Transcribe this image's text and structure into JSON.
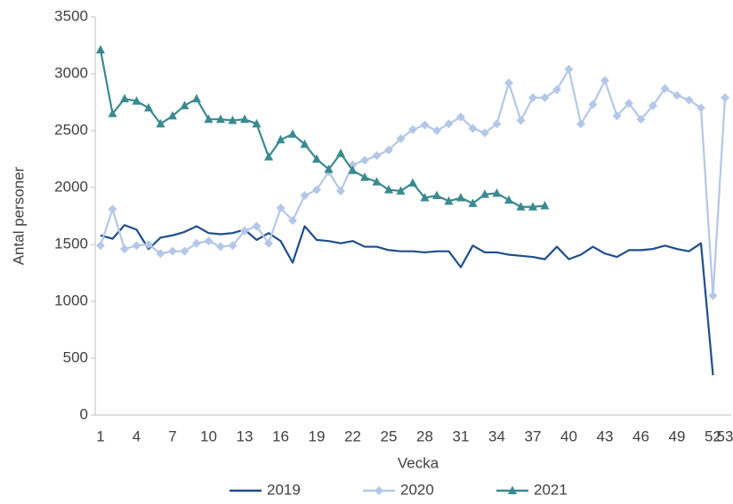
{
  "chart_data": {
    "type": "line",
    "x_label": "Vecka",
    "y_label": "Antal personer",
    "categories": [
      "1",
      null,
      null,
      "4",
      null,
      null,
      "7",
      null,
      null,
      "10",
      null,
      null,
      "13",
      null,
      null,
      "16",
      null,
      null,
      "19",
      null,
      null,
      "22",
      null,
      null,
      "25",
      null,
      null,
      "28",
      null,
      null,
      "31",
      null,
      null,
      "34",
      null,
      null,
      "37",
      null,
      null,
      "40",
      null,
      null,
      "43",
      null,
      null,
      "46",
      null,
      null,
      "49",
      null,
      null,
      "52",
      "53"
    ],
    "ylim": [
      0,
      3500
    ],
    "yticks": [
      0,
      500,
      1000,
      1500,
      2000,
      2500,
      3000,
      3500
    ],
    "grid": false,
    "legend": "bottom",
    "series": [
      {
        "name": "2019",
        "color": "#1f4e8c",
        "marker": "none",
        "values": [
          1580,
          1550,
          1670,
          1630,
          1460,
          1560,
          1580,
          1610,
          1660,
          1600,
          1590,
          1600,
          1630,
          1540,
          1600,
          1530,
          1340,
          1660,
          1540,
          1530,
          1510,
          1530,
          1480,
          1480,
          1450,
          1440,
          1440,
          1430,
          1440,
          1440,
          1300,
          1490,
          1430,
          1430,
          1410,
          1400,
          1390,
          1370,
          1480,
          1370,
          1410,
          1480,
          1420,
          1390,
          1450,
          1450,
          1460,
          1490,
          1460,
          1440,
          1510,
          350,
          null
        ]
      },
      {
        "name": "2020",
        "color": "#b4c7e7",
        "marker": "diamond",
        "values": [
          1490,
          1810,
          1460,
          1490,
          1500,
          1420,
          1440,
          1440,
          1510,
          1530,
          1480,
          1490,
          1620,
          1660,
          1510,
          1820,
          1710,
          1930,
          1980,
          2140,
          1970,
          2200,
          2240,
          2280,
          2330,
          2430,
          2510,
          2550,
          2500,
          2560,
          2620,
          2520,
          2480,
          2560,
          2920,
          2590,
          2790,
          2790,
          2860,
          3040,
          2560,
          2730,
          2940,
          2630,
          2740,
          2600,
          2720,
          2870,
          2810,
          2770,
          2700,
          1050,
          2790
        ]
      },
      {
        "name": "2021",
        "color": "#3a8a8f",
        "marker": "triangle",
        "values": [
          3210,
          2650,
          2780,
          2760,
          2700,
          2560,
          2630,
          2720,
          2780,
          2600,
          2600,
          2590,
          2600,
          2560,
          2270,
          2420,
          2470,
          2380,
          2250,
          2160,
          2300,
          2150,
          2090,
          2050,
          1980,
          1970,
          2040,
          1910,
          1930,
          1880,
          1910,
          1860,
          1940,
          1950,
          1890,
          1830,
          1830,
          1840,
          null,
          null,
          null,
          null,
          null,
          null,
          null,
          null,
          null,
          null,
          null,
          null,
          null,
          null,
          null
        ]
      }
    ]
  }
}
